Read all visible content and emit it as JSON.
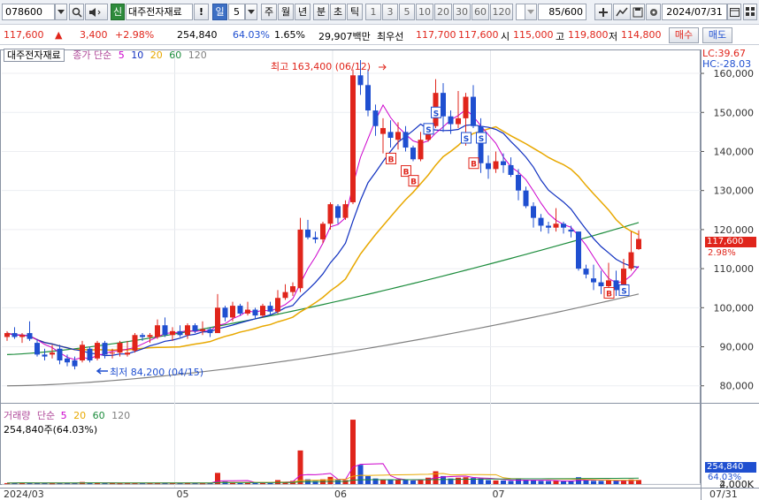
{
  "toolbar": {
    "code": "078600",
    "credit_badge": "신",
    "stock_name": "대주전자재료",
    "alert_badge": "!",
    "period_selected": "일",
    "period_value": "5",
    "periods": [
      "주",
      "월",
      "년",
      "분",
      "초",
      "틱"
    ],
    "intervals": [
      "1",
      "3",
      "5",
      "10",
      "20",
      "30",
      "60",
      "120"
    ],
    "view_count": "85/600",
    "date": "2024/07/31"
  },
  "quote": {
    "price": "117,600",
    "change": "3,400",
    "change_pct": "+2.98%",
    "volume": "254,840",
    "vol_ratio": "64.03%",
    "turnover": "1.65%",
    "amount": "29,907백만",
    "priority_label": "최우선",
    "ask": "117,700",
    "bid": "117,600",
    "open_label": "시",
    "open": "115,000",
    "high_label": "고",
    "high": "119,800",
    "low_label": "저",
    "low": "114,800",
    "buy_button": "매수",
    "sell_button": "매도"
  },
  "legend": {
    "name": "대주전자재료",
    "ma_label": "종가 단순",
    "ma_periods": [
      "5",
      "10",
      "20",
      "60",
      "120"
    ],
    "ma_colors": [
      "#cc00cc",
      "#1030c0",
      "#e8a800",
      "#1c8c3c",
      "#808080"
    ],
    "lc": "LC:39.67",
    "hc": "HC:-28.03",
    "vol_label": "거래량",
    "vol_ma_label": "단순",
    "vol_ma_periods": [
      "5",
      "20",
      "60",
      "120"
    ],
    "vol_ma_colors": [
      "#cc00cc",
      "#e8a800",
      "#1c8c3c",
      "#808080"
    ],
    "vol_value": "254,840주(64.03%)",
    "vol_tag": "254,840",
    "vol_pct_tag": "64.03%",
    "price_tag": "117,600",
    "price_pct_tag": "2.98%",
    "high_annotation": "최고 163,400 (06/12)",
    "low_annotation": "최저 84,200 (04/15)"
  },
  "chart_data": {
    "type": "candlestick",
    "price_axis": [
      "160,000",
      "150,000",
      "140,000",
      "130,000",
      "120,000",
      "110,000",
      "100,000",
      "90,000",
      "80,000"
    ],
    "price_ylim": [
      77000,
      162500
    ],
    "volume_axis": [
      "4,000K",
      "2,000K"
    ],
    "x_labels": [
      "2024/03",
      "05",
      "06",
      "07",
      "07/31"
    ],
    "signals": {
      "buy": "B",
      "sell": "S"
    },
    "candles": [
      [
        92.5,
        94.0,
        91.5,
        93.5
      ],
      [
        93.5,
        95.0,
        92.0,
        92.5
      ],
      [
        92.5,
        93.5,
        91.0,
        93.0
      ],
      [
        93.5,
        96.5,
        91.5,
        92.0
      ],
      [
        91.0,
        92.0,
        87.5,
        88.0
      ],
      [
        88.0,
        89.5,
        86.5,
        87.5
      ],
      [
        88.0,
        90.5,
        87.0,
        88.5
      ],
      [
        89.5,
        90.5,
        85.5,
        86.5
      ],
      [
        87.0,
        88.0,
        85.0,
        86.0
      ],
      [
        86.5,
        87.5,
        84.2,
        85.0
      ],
      [
        86.5,
        91.5,
        86.0,
        90.5
      ],
      [
        89.5,
        90.0,
        86.0,
        86.5
      ],
      [
        87.0,
        91.5,
        86.5,
        91.0
      ],
      [
        91.0,
        91.5,
        87.0,
        88.0
      ],
      [
        88.5,
        89.5,
        87.0,
        88.5
      ],
      [
        88.5,
        91.5,
        87.5,
        91.0
      ],
      [
        88.0,
        91.5,
        87.5,
        88.5
      ],
      [
        89.0,
        93.5,
        88.5,
        93.0
      ],
      [
        93.0,
        93.5,
        91.5,
        92.5
      ],
      [
        92.5,
        93.5,
        91.0,
        93.0
      ],
      [
        92.5,
        97.0,
        92.0,
        95.5
      ],
      [
        95.5,
        97.5,
        92.5,
        93.0
      ],
      [
        93.0,
        95.0,
        91.5,
        94.0
      ],
      [
        94.0,
        95.5,
        92.5,
        93.0
      ],
      [
        93.0,
        96.0,
        92.0,
        95.5
      ],
      [
        95.5,
        96.0,
        93.5,
        94.0
      ],
      [
        94.0,
        96.5,
        93.0,
        94.5
      ],
      [
        94.5,
        95.0,
        92.5,
        93.5
      ],
      [
        93.5,
        103.5,
        93.5,
        100.0
      ],
      [
        100.0,
        100.5,
        96.5,
        97.5
      ],
      [
        97.5,
        101.5,
        96.5,
        100.5
      ],
      [
        100.5,
        101.0,
        98.0,
        98.5
      ],
      [
        98.5,
        101.5,
        98.0,
        99.5
      ],
      [
        99.5,
        100.0,
        97.0,
        98.0
      ],
      [
        98.0,
        101.0,
        97.5,
        100.5
      ],
      [
        100.5,
        101.5,
        98.0,
        99.0
      ],
      [
        99.0,
        104.5,
        98.5,
        102.5
      ],
      [
        102.5,
        106.0,
        102.0,
        104.0
      ],
      [
        104.0,
        106.5,
        103.0,
        105.5
      ],
      [
        105.0,
        123.0,
        104.0,
        120.0
      ],
      [
        120.0,
        122.5,
        117.5,
        118.0
      ],
      [
        118.0,
        119.5,
        116.5,
        117.5
      ],
      [
        117.5,
        122.0,
        116.5,
        121.5
      ],
      [
        121.5,
        127.0,
        120.0,
        126.5
      ],
      [
        126.0,
        126.5,
        121.5,
        123.0
      ],
      [
        123.0,
        127.5,
        122.5,
        126.5
      ],
      [
        127.0,
        161.0,
        126.5,
        159.5
      ],
      [
        159.5,
        163.4,
        154.5,
        157.0
      ],
      [
        157.0,
        161.0,
        149.0,
        150.5
      ],
      [
        150.5,
        152.0,
        144.0,
        146.5
      ],
      [
        144.5,
        148.5,
        139.5,
        146.0
      ],
      [
        145.0,
        148.0,
        141.0,
        143.5
      ],
      [
        143.0,
        147.5,
        140.5,
        145.0
      ],
      [
        145.0,
        146.5,
        140.0,
        141.0
      ],
      [
        141.0,
        141.5,
        137.5,
        138.0
      ],
      [
        138.0,
        145.0,
        137.5,
        143.0
      ],
      [
        143.0,
        147.0,
        142.5,
        146.5
      ],
      [
        146.5,
        158.5,
        146.0,
        155.0
      ],
      [
        155.0,
        157.5,
        145.0,
        149.0
      ],
      [
        149.0,
        150.5,
        144.5,
        147.0
      ],
      [
        147.0,
        155.5,
        146.0,
        148.5
      ],
      [
        148.5,
        155.0,
        141.5,
        154.0
      ],
      [
        154.0,
        157.0,
        146.0,
        146.5
      ],
      [
        146.5,
        148.5,
        134.5,
        137.0
      ],
      [
        137.0,
        139.0,
        133.0,
        135.5
      ],
      [
        135.5,
        140.0,
        134.5,
        137.5
      ],
      [
        137.5,
        139.5,
        134.5,
        136.5
      ],
      [
        136.5,
        138.5,
        133.5,
        134.0
      ],
      [
        134.0,
        135.5,
        127.5,
        130.0
      ],
      [
        130.0,
        131.0,
        125.5,
        126.0
      ],
      [
        126.0,
        127.0,
        120.5,
        123.0
      ],
      [
        123.0,
        124.0,
        119.5,
        121.0
      ],
      [
        121.0,
        122.0,
        119.0,
        120.5
      ],
      [
        120.5,
        125.5,
        119.5,
        121.5
      ],
      [
        121.5,
        122.0,
        119.0,
        120.5
      ],
      [
        120.0,
        121.0,
        118.0,
        119.5
      ],
      [
        119.5,
        119.5,
        109.5,
        110.0
      ],
      [
        110.0,
        111.0,
        107.5,
        108.5
      ],
      [
        107.5,
        111.0,
        104.5,
        106.5
      ],
      [
        106.5,
        109.5,
        103.5,
        105.5
      ],
      [
        105.5,
        111.5,
        104.0,
        107.0
      ],
      [
        107.0,
        109.5,
        103.0,
        104.5
      ],
      [
        104.5,
        112.5,
        104.0,
        110.0
      ],
      [
        110.0,
        119.5,
        109.5,
        114.2
      ],
      [
        115.0,
        119.8,
        114.8,
        117.6
      ]
    ],
    "volumes": [
      60,
      80,
      90,
      70,
      55,
      65,
      50,
      70,
      60,
      60,
      130,
      90,
      70,
      60,
      55,
      50,
      75,
      70,
      60,
      55,
      60,
      90,
      60,
      55,
      70,
      60,
      50,
      60,
      700,
      160,
      80,
      70,
      80,
      80,
      90,
      80,
      250,
      120,
      200,
      2100,
      300,
      200,
      300,
      450,
      260,
      250,
      4020,
      1200,
      500,
      350,
      300,
      260,
      270,
      250,
      220,
      300,
      400,
      800,
      500,
      350,
      400,
      430,
      380,
      350,
      250,
      230,
      220,
      200,
      300,
      270,
      230,
      200,
      190,
      210,
      170,
      180,
      430,
      260,
      200,
      200,
      220,
      200,
      250,
      290,
      255
    ],
    "signal_marks": [
      {
        "type": "B",
        "index": 51,
        "price": 138.2
      },
      {
        "type": "B",
        "index": 53,
        "price": 135.0
      },
      {
        "type": "B",
        "index": 54,
        "price": 132.5
      },
      {
        "type": "S",
        "index": 57,
        "price": 150.0
      },
      {
        "type": "S",
        "index": 56,
        "price": 145.8
      },
      {
        "type": "S",
        "index": 61,
        "price": 143.5
      },
      {
        "type": "S",
        "index": 63,
        "price": 143.5
      },
      {
        "type": "B",
        "index": 62,
        "price": 137.0
      },
      {
        "type": "B",
        "index": 80,
        "price": 103.8
      },
      {
        "type": "S",
        "index": 82,
        "price": 104.5
      }
    ],
    "ma120_range": [
      80.0,
      103.5
    ],
    "ma60_range": [
      88.0,
      121.8
    ]
  }
}
